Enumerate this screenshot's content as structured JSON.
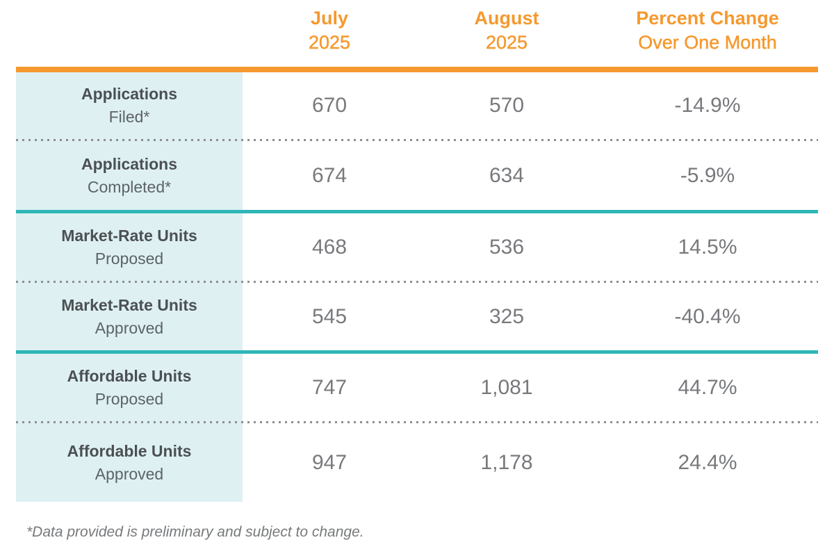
{
  "table": {
    "columns": [
      {
        "line1": "July",
        "line2": "2025"
      },
      {
        "line1": "August",
        "line2": "2025"
      },
      {
        "line1": "Percent Change",
        "line2": "Over One Month"
      }
    ],
    "rows": [
      {
        "label1": "Applications",
        "label2": "Filed*",
        "jul": "670",
        "aug": "570",
        "pct": "-14.9%"
      },
      {
        "label1": "Applications",
        "label2": "Completed*",
        "jul": "674",
        "aug": "634",
        "pct": "-5.9%"
      },
      {
        "label1": "Market-Rate Units",
        "label2": "Proposed",
        "jul": "468",
        "aug": "536",
        "pct": "14.5%"
      },
      {
        "label1": "Market-Rate Units",
        "label2": "Approved",
        "jul": "545",
        "aug": "325",
        "pct": "-40.4%"
      },
      {
        "label1": "Affordable Units",
        "label2": "Proposed",
        "jul": "747",
        "aug": "1,081",
        "pct": "44.7%"
      },
      {
        "label1": "Affordable Units",
        "label2": "Approved",
        "jul": "947",
        "aug": "1,178",
        "pct": "24.4%"
      }
    ]
  },
  "footnote": "*Data provided is preliminary and subject to change.",
  "colors": {
    "accent_orange": "#F5992E",
    "accent_teal": "#2EB6B6",
    "label_column_bg": "#DEF0F2",
    "label_bold_text": "#4B5054",
    "value_text": "#77797C"
  },
  "chart_data": {
    "type": "table",
    "columns": [
      "",
      "July 2025",
      "August 2025",
      "Percent Change Over One Month"
    ],
    "rows": [
      [
        "Applications Filed*",
        670,
        570,
        "-14.9%"
      ],
      [
        "Applications Completed*",
        674,
        634,
        "-5.9%"
      ],
      [
        "Market-Rate Units Proposed",
        468,
        536,
        "14.5%"
      ],
      [
        "Market-Rate Units Approved",
        545,
        325,
        "-40.4%"
      ],
      [
        "Affordable Units Proposed",
        747,
        1081,
        "44.7%"
      ],
      [
        "Affordable Units Approved",
        947,
        1178,
        "24.4%"
      ]
    ],
    "footnote": "*Data provided is preliminary and subject to change.",
    "layout": "first column is row labels on light-cyan background; thick orange rule under header; teal rules between row-pair groups; dotted rules within groups"
  }
}
